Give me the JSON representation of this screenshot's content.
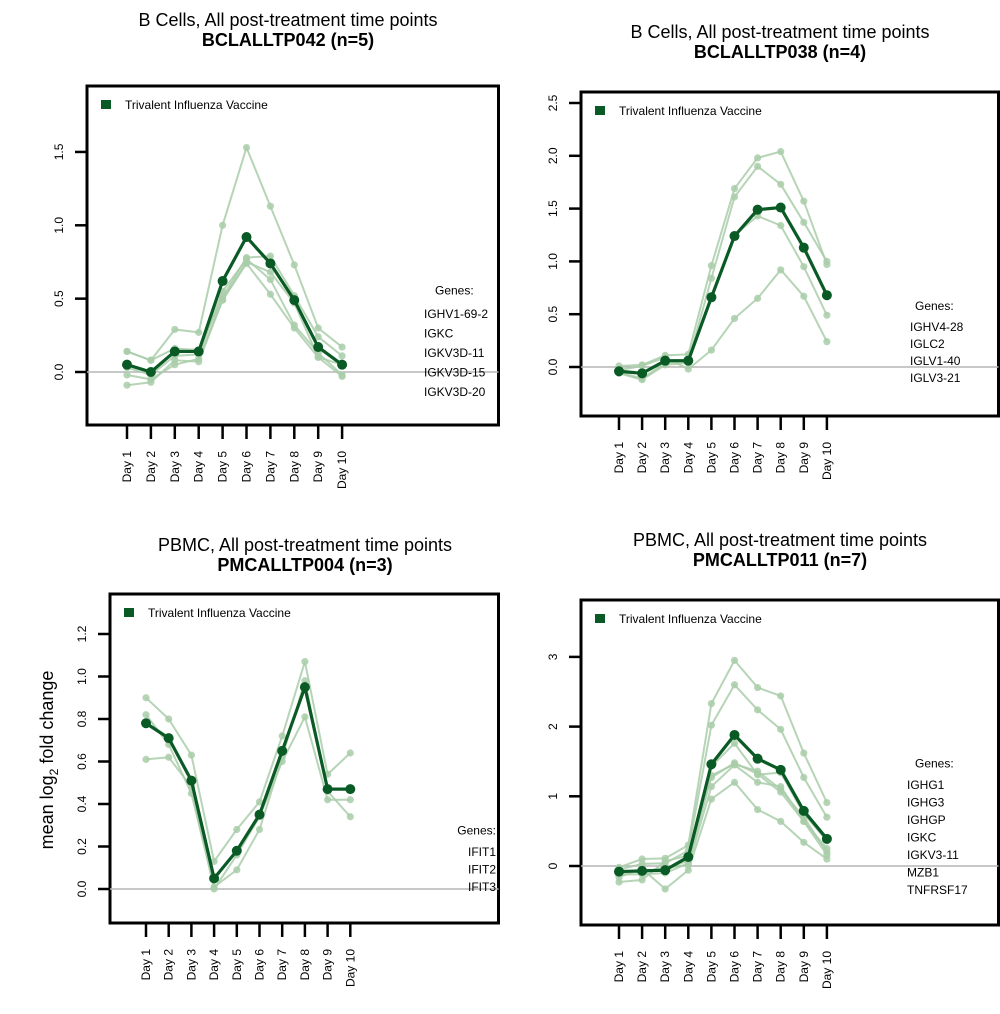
{
  "colors": {
    "mean": "#0a5a25",
    "gene": "#a9cda9",
    "legend": "#0a5a25",
    "zero_line": "#b5b5b5"
  },
  "chart_data": [
    {
      "type": "line",
      "title": "B Cells, All post-treatment time points",
      "subtitle": "BCLALLTP042 (n=5)",
      "xlabel": "",
      "ylabel": "",
      "categories": [
        "Day 1",
        "Day 2",
        "Day 3",
        "Day 4",
        "Day 5",
        "Day 6",
        "Day 7",
        "Day 8",
        "Day 9",
        "Day 10"
      ],
      "yticks": [
        "0.0",
        "0.5",
        "1.0",
        "1.5"
      ],
      "ytick_values": [
        0,
        0.5,
        1.0,
        1.5
      ],
      "ylim": [
        -0.35,
        1.95
      ],
      "legend": "Trivalent Influenza Vaccine",
      "legend_position": "top-left",
      "genes_label": "Genes:",
      "genes": [
        "IGHV1-69-2",
        "IGKC",
        "IGKV3D-11",
        "IGKV3D-15",
        "IGKV3D-20"
      ],
      "mean": [
        0.05,
        0.0,
        0.14,
        0.14,
        0.62,
        0.92,
        0.74,
        0.49,
        0.17,
        0.05
      ],
      "series": [
        {
          "name": "gene1",
          "values": [
            0.14,
            0.08,
            0.29,
            0.27,
            1.0,
            1.53,
            1.13,
            0.73,
            0.3,
            0.17
          ]
        },
        {
          "name": "gene2",
          "values": [
            0.14,
            0.08,
            0.16,
            0.15,
            0.51,
            0.78,
            0.79,
            0.52,
            0.24,
            0.11
          ]
        },
        {
          "name": "gene3",
          "values": [
            0.03,
            -0.02,
            0.11,
            0.12,
            0.55,
            0.77,
            0.63,
            0.32,
            0.13,
            -0.02
          ]
        },
        {
          "name": "gene4",
          "values": [
            -0.02,
            -0.05,
            0.05,
            0.09,
            0.49,
            0.74,
            0.53,
            0.3,
            0.1,
            -0.03
          ]
        },
        {
          "name": "gene5",
          "values": [
            -0.09,
            -0.07,
            0.08,
            0.07,
            0.49,
            0.75,
            0.68,
            0.47,
            0.1,
            0.05
          ]
        }
      ]
    },
    {
      "type": "line",
      "title": "B Cells, All post-treatment time points",
      "subtitle": "BCLALLTP038 (n=4)",
      "xlabel": "",
      "ylabel": "",
      "categories": [
        "Day 1",
        "Day 2",
        "Day 3",
        "Day 4",
        "Day 5",
        "Day 6",
        "Day 7",
        "Day 8",
        "Day 9",
        "Day 10"
      ],
      "yticks": [
        "0.0",
        "0.5",
        "1.0",
        "1.5",
        "2.0",
        "2.5"
      ],
      "ytick_values": [
        0,
        0.5,
        1.0,
        1.5,
        2.0,
        2.5
      ],
      "ylim": [
        -0.46,
        2.6
      ],
      "legend": "Trivalent Influenza Vaccine",
      "legend_position": "top-left",
      "genes_label": "Genes:",
      "genes": [
        "IGHV4-28",
        "IGLC2",
        "IGLV1-40",
        "IGLV3-21"
      ],
      "mean": [
        -0.04,
        -0.06,
        0.06,
        0.06,
        0.66,
        1.24,
        1.49,
        1.51,
        1.13,
        0.68
      ],
      "series": [
        {
          "name": "gene1",
          "values": [
            0.01,
            0.02,
            0.11,
            0.12,
            0.96,
            1.69,
            1.98,
            2.04,
            1.57,
            0.97
          ]
        },
        {
          "name": "gene2",
          "values": [
            -0.05,
            -0.11,
            0.04,
            0.05,
            0.84,
            1.61,
            1.9,
            1.73,
            1.37,
            1.0
          ]
        },
        {
          "name": "gene3",
          "values": [
            -0.06,
            -0.12,
            0.02,
            0.04,
            0.67,
            1.25,
            1.43,
            1.34,
            0.95,
            0.49
          ]
        },
        {
          "name": "gene4",
          "values": [
            -0.03,
            0.01,
            0.09,
            -0.02,
            0.16,
            0.46,
            0.65,
            0.92,
            0.67,
            0.24
          ]
        }
      ]
    },
    {
      "type": "line",
      "title": "PBMC, All post-treatment time points",
      "subtitle": "PMCALLTP004 (n=3)",
      "xlabel": "",
      "ylabel": "mean log2 fold change",
      "categories": [
        "Day 1",
        "Day 2",
        "Day 3",
        "Day 4",
        "Day 5",
        "Day 6",
        "Day 7",
        "Day 8",
        "Day 9",
        "Day 10"
      ],
      "yticks": [
        "0.0",
        "0.2",
        "0.4",
        "0.6",
        "0.8",
        "1.0",
        "1.2"
      ],
      "ytick_values": [
        0,
        0.2,
        0.4,
        0.6,
        0.8,
        1.0,
        1.2
      ],
      "ylim": [
        -0.16,
        1.39
      ],
      "legend": "Trivalent Influenza Vaccine",
      "legend_position": "top-left",
      "genes_label": "Genes:",
      "genes": [
        "IFIT1",
        "IFIT2",
        "IFIT3"
      ],
      "mean": [
        0.78,
        0.71,
        0.51,
        0.05,
        0.18,
        0.35,
        0.65,
        0.95,
        0.47,
        0.47
      ],
      "series": [
        {
          "name": "gene1",
          "values": [
            0.9,
            0.8,
            0.63,
            0.13,
            0.28,
            0.41,
            0.72,
            1.07,
            0.54,
            0.64
          ]
        },
        {
          "name": "gene2",
          "values": [
            0.82,
            0.68,
            0.45,
            0.01,
            0.09,
            0.28,
            0.62,
            0.98,
            0.46,
            0.34
          ]
        },
        {
          "name": "gene3",
          "values": [
            0.61,
            0.62,
            0.48,
            0.0,
            0.16,
            0.34,
            0.6,
            0.81,
            0.42,
            0.42
          ]
        }
      ]
    },
    {
      "type": "line",
      "title": "PBMC, All post-treatment time points",
      "subtitle": "PMCALLTP011 (n=7)",
      "xlabel": "",
      "ylabel": "",
      "categories": [
        "Day 1",
        "Day 2",
        "Day 3",
        "Day 4",
        "Day 5",
        "Day 6",
        "Day 7",
        "Day 8",
        "Day 9",
        "Day 10"
      ],
      "yticks": [
        "0",
        "1",
        "2",
        "3"
      ],
      "ytick_values": [
        0,
        1,
        2,
        3
      ],
      "ylim": [
        -0.85,
        3.82
      ],
      "legend": "Trivalent Influenza Vaccine",
      "legend_position": "top-left",
      "genes_label": "Genes:",
      "genes": [
        "IGHG1",
        "IGHG3",
        "IGHGP",
        "IGKC",
        "IGKV3-11",
        "MZB1",
        "TNFRSF17"
      ],
      "mean": [
        -0.08,
        -0.07,
        -0.06,
        0.13,
        1.46,
        1.88,
        1.54,
        1.38,
        0.79,
        0.39
      ],
      "series": [
        {
          "name": "gene1",
          "values": [
            -0.02,
            0.1,
            0.11,
            0.3,
            2.33,
            2.95,
            2.56,
            2.44,
            1.62,
            0.91
          ]
        },
        {
          "name": "gene2",
          "values": [
            -0.05,
            0.03,
            0.04,
            0.22,
            2.02,
            2.6,
            2.24,
            1.96,
            1.27,
            0.7
          ]
        },
        {
          "name": "gene3",
          "values": [
            -0.1,
            -0.07,
            -0.05,
            0.08,
            1.43,
            1.76,
            1.31,
            1.34,
            0.75,
            0.36
          ]
        },
        {
          "name": "gene4",
          "values": [
            -0.12,
            -0.12,
            -0.1,
            0.04,
            1.3,
            1.46,
            1.36,
            1.1,
            0.7,
            0.2
          ]
        },
        {
          "name": "gene5",
          "values": [
            -0.08,
            -0.09,
            -0.02,
            0.01,
            1.14,
            1.45,
            1.2,
            1.14,
            0.64,
            0.16
          ]
        },
        {
          "name": "gene6",
          "values": [
            -0.16,
            -0.04,
            -0.33,
            -0.06,
            0.96,
            1.2,
            0.81,
            0.64,
            0.34,
            0.1
          ]
        },
        {
          "name": "gene7",
          "values": [
            -0.23,
            -0.2,
            0.07,
            0.15,
            1.27,
            1.48,
            1.32,
            1.06,
            0.64,
            0.25
          ]
        }
      ]
    }
  ]
}
